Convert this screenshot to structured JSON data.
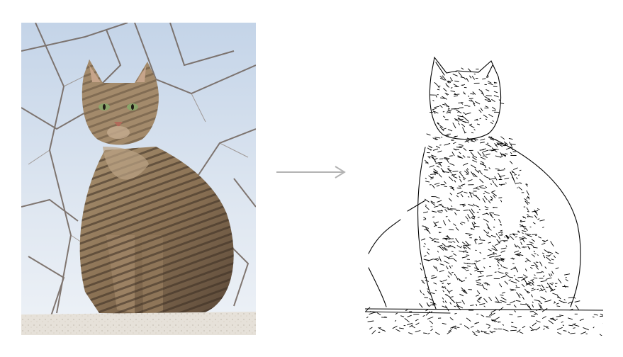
{
  "figure": {
    "left_panel": {
      "content": "photograph",
      "subject": "tabby-cat-sitting-on-wall",
      "colors": {
        "sky_top": "#c9d8ea",
        "sky_bottom": "#eef2f7",
        "branches": "#7a6a60",
        "fur_light": "#a58a6c",
        "fur_dark": "#3b2f25",
        "eyes": "#8aa46a",
        "wall": "#e7e3dc"
      }
    },
    "arrow": {
      "icon": "right-arrow-icon",
      "color": "#b3b3b3"
    },
    "right_panel": {
      "content": "edge-detection-result",
      "colors": {
        "background": "#ffffff",
        "edges": "#000000"
      }
    }
  }
}
